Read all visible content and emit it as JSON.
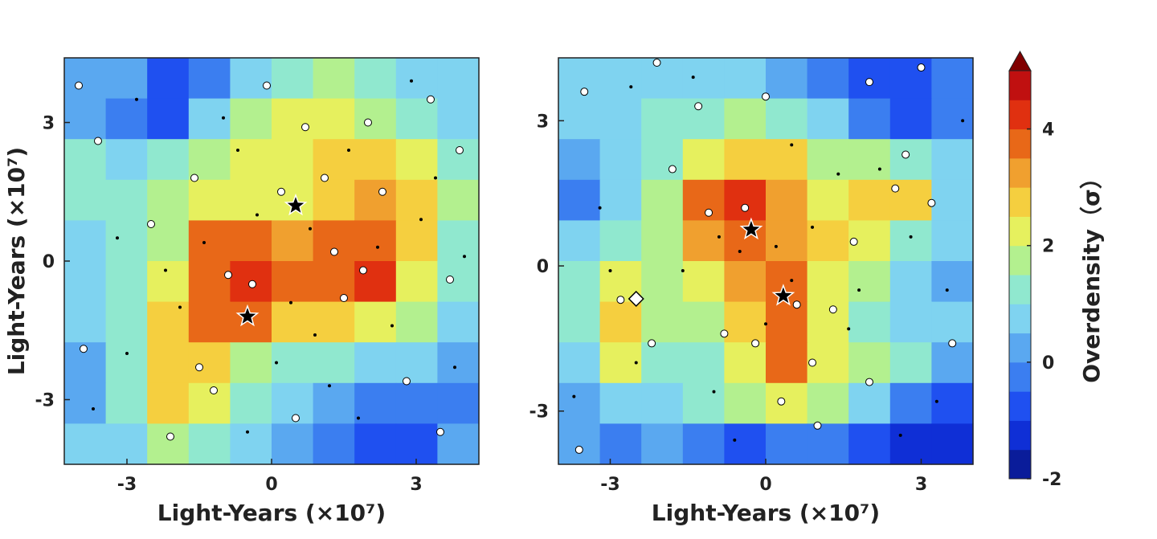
{
  "chart_data": [
    {
      "type": "contour",
      "xlabel": "Light-Years (×10⁷)",
      "ylabel": "Light-Years (×10⁷)",
      "xlim": [
        -4.3,
        4.3
      ],
      "ylim": [
        -4.4,
        4.4
      ],
      "xticks": [
        -3,
        0,
        3
      ],
      "yticks": [
        -3,
        0,
        3
      ],
      "z": [
        [
          0.3,
          0,
          -0.6,
          -0.3,
          0.8,
          1.2,
          1.5,
          1.3,
          0.9,
          0.7
        ],
        [
          0.2,
          -0.5,
          -0.8,
          0.5,
          1.5,
          2.2,
          2.0,
          1.6,
          1.2,
          0.8
        ],
        [
          1.0,
          0.8,
          1.0,
          1.5,
          2.0,
          2.3,
          2.5,
          2.8,
          2.0,
          1.2
        ],
        [
          1.2,
          1.0,
          1.5,
          2.0,
          2.3,
          2.2,
          2.5,
          3.2,
          2.5,
          1.5
        ],
        [
          0.8,
          1.0,
          1.8,
          3.5,
          3.8,
          3.2,
          3.6,
          3.8,
          2.5,
          1.2
        ],
        [
          0.6,
          1.0,
          2.2,
          3.9,
          4.3,
          3.8,
          3.8,
          4.4,
          2.2,
          1.0
        ],
        [
          0.5,
          1.0,
          2.5,
          3.6,
          3.5,
          2.8,
          2.5,
          2.4,
          1.5,
          0.8
        ],
        [
          0.4,
          1.2,
          2.8,
          2.8,
          1.5,
          1.0,
          1.0,
          0.8,
          0.5,
          0.3
        ],
        [
          0.3,
          1.0,
          2.5,
          2.0,
          1.0,
          0.6,
          0.3,
          -0.2,
          -0.5,
          -0.3
        ],
        [
          0.5,
          0.8,
          1.5,
          1.2,
          0.8,
          0.2,
          -0.3,
          -0.8,
          -0.6,
          0.0
        ]
      ],
      "series": [
        {
          "marker": "circle",
          "color": "#ffffff",
          "x": [
            -3.6,
            -2.1,
            -1.5,
            -0.9,
            -0.4,
            0.2,
            0.7,
            1.1,
            1.9,
            1.5,
            2.3,
            3.3,
            3.9,
            -3.9,
            -1.2,
            0.5,
            2.8,
            3.5,
            -2.5,
            1.3,
            -0.1,
            -4.0,
            2.0,
            -1.6,
            3.7
          ],
          "y": [
            2.6,
            -3.8,
            -2.3,
            -0.3,
            -0.5,
            1.5,
            2.9,
            1.8,
            -0.2,
            -0.8,
            1.5,
            3.5,
            2.4,
            -1.9,
            -2.8,
            -3.4,
            -2.6,
            -3.7,
            0.8,
            0.2,
            3.8,
            3.8,
            3.0,
            1.8,
            -0.4
          ]
        },
        {
          "marker": "dot",
          "color": "#000000",
          "x": [
            -3.2,
            -2.8,
            -1.9,
            -0.7,
            0.1,
            0.8,
            1.6,
            2.5,
            3.1,
            3.8,
            -3.7,
            -1.0,
            0.4,
            1.2,
            2.9,
            -2.2,
            -0.3,
            2.2,
            -1.4,
            0.9,
            3.4,
            -3.0,
            1.8,
            -0.5,
            4.0
          ],
          "y": [
            0.5,
            3.5,
            -1.0,
            2.4,
            -2.2,
            0.7,
            2.4,
            -1.4,
            0.9,
            -2.3,
            -3.2,
            3.1,
            -0.9,
            -2.7,
            3.9,
            -0.2,
            1.0,
            0.3,
            0.4,
            -1.6,
            1.8,
            -2.0,
            -3.4,
            -3.7,
            0.1
          ]
        },
        {
          "marker": "star",
          "color": "#000000",
          "x": [
            0.5,
            -0.5
          ],
          "y": [
            1.2,
            -1.2
          ]
        }
      ]
    },
    {
      "type": "contour",
      "xlabel": "Light-Years (×10⁷)",
      "xlim": [
        -4.0,
        4.0
      ],
      "ylim": [
        -4.1,
        4.3
      ],
      "xticks": [
        -3,
        0,
        3
      ],
      "yticks": [
        -3,
        0,
        3
      ],
      "z": [
        [
          0.8,
          0.6,
          0.8,
          0.8,
          0.5,
          0.3,
          -0.5,
          -1.0,
          -0.8,
          -0.5
        ],
        [
          0.5,
          0.8,
          1.0,
          1.2,
          1.5,
          1.2,
          0.5,
          -0.3,
          -0.8,
          -0.5
        ],
        [
          0.2,
          0.8,
          1.2,
          2.0,
          2.8,
          2.5,
          1.5,
          1.5,
          1.2,
          0.5
        ],
        [
          -0.2,
          0.8,
          1.5,
          3.5,
          4.2,
          3.0,
          2.2,
          2.8,
          2.5,
          0.8
        ],
        [
          0.5,
          1.2,
          1.5,
          3.0,
          3.8,
          3.2,
          2.5,
          2.0,
          1.2,
          0.5
        ],
        [
          1.0,
          2.0,
          1.8,
          2.0,
          3.0,
          3.9,
          2.2,
          1.5,
          0.8,
          0.3
        ],
        [
          1.2,
          2.6,
          1.8,
          1.5,
          2.5,
          3.5,
          2.0,
          1.2,
          0.8,
          0.5
        ],
        [
          0.6,
          2.0,
          1.2,
          1.0,
          2.2,
          3.8,
          2.2,
          1.5,
          1.0,
          0.3
        ],
        [
          0.2,
          0.5,
          0.8,
          1.0,
          1.5,
          2.0,
          1.5,
          0.8,
          -0.3,
          -0.8
        ],
        [
          0.0,
          -0.2,
          0.2,
          -0.5,
          -1.0,
          -0.5,
          -0.3,
          -0.8,
          -1.5,
          -1.2
        ]
      ],
      "series": [
        {
          "marker": "circle",
          "color": "#ffffff",
          "x": [
            -3.5,
            -2.1,
            -1.3,
            0.0,
            2.0,
            3.0,
            -1.1,
            -0.4,
            0.6,
            1.3,
            2.5,
            3.2,
            1.7,
            -2.8,
            -3.6,
            -0.8,
            -0.2,
            0.9,
            0.3,
            1.0,
            2.0,
            3.6,
            -2.2,
            2.7,
            -1.8
          ],
          "y": [
            3.6,
            4.2,
            3.3,
            3.5,
            3.8,
            4.1,
            1.1,
            1.2,
            -0.8,
            -0.9,
            1.6,
            1.3,
            0.5,
            -0.7,
            -3.8,
            -1.4,
            -1.6,
            -2.0,
            -2.8,
            -3.3,
            -2.4,
            -1.6,
            -1.6,
            2.3,
            2.0
          ]
        },
        {
          "marker": "dot",
          "color": "#000000",
          "x": [
            -3.2,
            -2.6,
            -1.6,
            -0.9,
            -0.5,
            0.2,
            0.5,
            0.9,
            1.4,
            2.2,
            2.8,
            3.5,
            -3.7,
            -2.5,
            -1.0,
            0.0,
            1.6,
            2.6,
            3.8,
            -1.4,
            0.5,
            -3.0,
            -0.6,
            1.8,
            3.3
          ],
          "y": [
            1.2,
            3.7,
            -0.1,
            0.6,
            0.3,
            0.4,
            -0.3,
            0.8,
            1.9,
            2.0,
            0.6,
            -0.5,
            -2.7,
            -2.0,
            -2.6,
            -1.2,
            -1.3,
            -3.5,
            3.0,
            3.9,
            2.5,
            -0.1,
            -3.6,
            -0.5,
            -2.8
          ]
        },
        {
          "marker": "star",
          "color": "#000000",
          "x": [
            -0.28,
            0.34
          ],
          "y": [
            0.75,
            -0.62
          ]
        },
        {
          "marker": "diamond",
          "color": "#ffffff",
          "x": [
            -2.5
          ],
          "y": [
            -0.68
          ]
        }
      ]
    }
  ],
  "colorbar": {
    "label": "Overdensity（σ）",
    "lim": [
      -2,
      5
    ],
    "ticks": [
      -2,
      0,
      2,
      4
    ],
    "extend": "max",
    "levels": [
      -2,
      -1.5,
      -1,
      -0.5,
      0,
      0.5,
      1,
      1.5,
      2,
      2.5,
      3,
      3.5,
      4,
      4.5,
      5
    ],
    "colors": [
      "#0a1c9a",
      "#0f2fd6",
      "#1f50f0",
      "#3b7ef0",
      "#5aa8f0",
      "#7fd3f0",
      "#90e8cf",
      "#b3f08f",
      "#e6f05e",
      "#f5cf3f",
      "#f0a02f",
      "#e86818",
      "#e03010",
      "#c01010",
      "#800000"
    ]
  }
}
